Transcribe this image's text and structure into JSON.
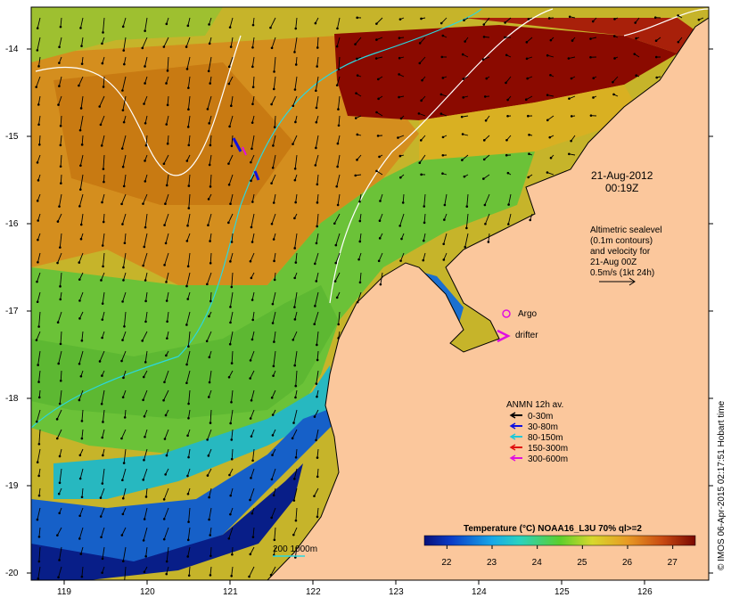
{
  "map": {
    "lat_ticks": [
      "-14",
      "-15",
      "-16",
      "-17",
      "-18",
      "-19",
      "-20"
    ],
    "lon_ticks": [
      "119",
      "120",
      "121",
      "122",
      "123",
      "124",
      "125",
      "126"
    ],
    "colors": {
      "land": "#fbc79c",
      "warm_dark": "#8b0a00",
      "warm_orange": "#d6861a",
      "mid_yellow": "#d8cd2c",
      "mid_green": "#5fbf34",
      "cool_cyan": "#2bb9d5",
      "cool_blue": "#0f3ca8",
      "cool_navy": "#061a7a"
    }
  },
  "datetime": {
    "date": "21-Aug-2012",
    "time": "00:19Z"
  },
  "altimetry_note": {
    "lines": [
      "Altimetric sealevel",
      "(0.1m contours)",
      "and velocity for",
      "21-Aug 00Z",
      "0.5m/s (1kt 24h)"
    ]
  },
  "markers": {
    "argo_label": "Argo",
    "drifter_label": "drifter"
  },
  "mooring_legend": {
    "title": "ANMN 12h av.",
    "items": [
      {
        "label": "0-30m",
        "color": "#000000"
      },
      {
        "label": "30-80m",
        "color": "#1010e0"
      },
      {
        "label": "80-150m",
        "color": "#20c8d8"
      },
      {
        "label": "150-300m",
        "color": "#e01010"
      },
      {
        "label": "300-600m",
        "color": "#e010e0"
      }
    ]
  },
  "colorbar": {
    "title": "Temperature (°C) NOAA16_L3U 70% ql>=2",
    "ticks": [
      "22",
      "23",
      "24",
      "25",
      "26",
      "27"
    ],
    "range": [
      21.5,
      27.5
    ]
  },
  "isobath_label": "200  1000m",
  "credit": "© IMOS 06-Apr-2015 02:17:51 Hobart time"
}
